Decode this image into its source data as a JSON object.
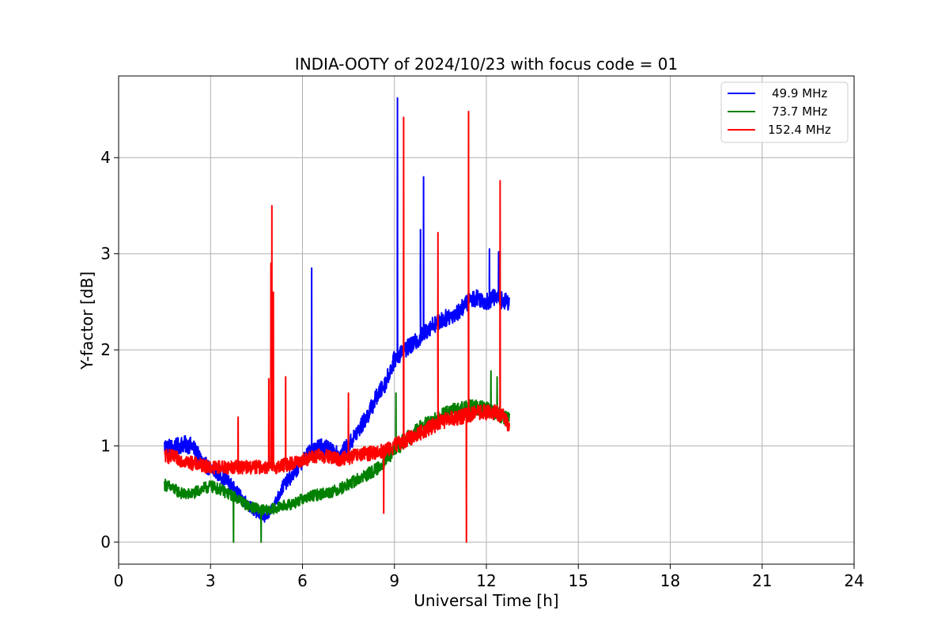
{
  "chart_data": {
    "type": "line",
    "title": "INDIA-OOTY of 2024/10/23 with focus code = 01",
    "xlabel": "Universal Time [h]",
    "ylabel": "Y-factor [dB]",
    "xlim": [
      0,
      24
    ],
    "ylim": [
      -0.23,
      4.85
    ],
    "xticks": [
      0,
      3,
      6,
      9,
      12,
      15,
      18,
      21,
      24
    ],
    "yticks": [
      0,
      1,
      2,
      3,
      4
    ],
    "grid": true,
    "legend_position": "top-right",
    "series": [
      {
        "name": "49.9 MHz",
        "color": "#0000ff",
        "x": [
          1.5,
          1.8,
          2.1,
          2.4,
          2.7,
          3.0,
          3.3,
          3.6,
          3.9,
          4.2,
          4.5,
          4.8,
          5.1,
          5.4,
          5.7,
          6.0,
          6.3,
          6.6,
          6.9,
          7.2,
          7.5,
          7.8,
          8.1,
          8.4,
          8.7,
          9.0,
          9.3,
          9.6,
          9.9,
          10.2,
          10.5,
          10.8,
          11.1,
          11.4,
          11.7,
          12.0,
          12.3,
          12.6,
          12.75
        ],
        "y": [
          1.0,
          0.98,
          1.02,
          1.0,
          0.85,
          0.75,
          0.7,
          0.62,
          0.5,
          0.4,
          0.3,
          0.25,
          0.4,
          0.6,
          0.7,
          0.85,
          0.95,
          1.0,
          0.95,
          0.9,
          1.0,
          1.15,
          1.3,
          1.5,
          1.65,
          1.9,
          2.0,
          2.05,
          2.15,
          2.25,
          2.3,
          2.35,
          2.4,
          2.5,
          2.55,
          2.5,
          2.55,
          2.5,
          2.5
        ],
        "spikes": [
          [
            6.3,
            2.85
          ],
          [
            9.1,
            4.62
          ],
          [
            9.85,
            3.25
          ],
          [
            9.95,
            3.8
          ],
          [
            12.1,
            3.05
          ],
          [
            12.4,
            3.02
          ]
        ]
      },
      {
        "name": "73.7 MHz",
        "color": "#008000",
        "x": [
          1.5,
          1.8,
          2.1,
          2.4,
          2.7,
          3.0,
          3.3,
          3.6,
          3.9,
          4.2,
          4.5,
          4.8,
          5.1,
          5.4,
          5.7,
          6.0,
          6.3,
          6.6,
          6.9,
          7.2,
          7.5,
          7.8,
          8.1,
          8.4,
          8.7,
          9.0,
          9.3,
          9.6,
          9.9,
          10.2,
          10.5,
          10.8,
          11.1,
          11.4,
          11.7,
          12.0,
          12.3,
          12.6,
          12.75
        ],
        "y": [
          0.6,
          0.55,
          0.5,
          0.5,
          0.55,
          0.58,
          0.55,
          0.5,
          0.45,
          0.38,
          0.35,
          0.33,
          0.35,
          0.38,
          0.4,
          0.45,
          0.48,
          0.5,
          0.52,
          0.55,
          0.6,
          0.65,
          0.7,
          0.75,
          0.85,
          0.95,
          1.05,
          1.12,
          1.2,
          1.25,
          1.3,
          1.35,
          1.38,
          1.4,
          1.4,
          1.38,
          1.35,
          1.3,
          1.3
        ],
        "spikes": [
          [
            3.75,
            0.0
          ],
          [
            4.65,
            0.0
          ],
          [
            9.05,
            1.55
          ],
          [
            12.15,
            1.78
          ],
          [
            12.35,
            1.72
          ]
        ]
      },
      {
        "name": "152.4 MHz",
        "color": "#ff0000",
        "x": [
          1.5,
          1.8,
          2.1,
          2.4,
          2.7,
          3.0,
          3.3,
          3.6,
          3.9,
          4.2,
          4.5,
          4.8,
          5.1,
          5.4,
          5.7,
          6.0,
          6.3,
          6.6,
          6.9,
          7.2,
          7.5,
          7.8,
          8.1,
          8.4,
          8.7,
          9.0,
          9.3,
          9.6,
          9.9,
          10.2,
          10.5,
          10.8,
          11.1,
          11.4,
          11.7,
          12.0,
          12.3,
          12.6,
          12.75
        ],
        "y": [
          0.9,
          0.88,
          0.85,
          0.82,
          0.8,
          0.78,
          0.78,
          0.78,
          0.78,
          0.78,
          0.78,
          0.78,
          0.78,
          0.8,
          0.82,
          0.85,
          0.88,
          0.9,
          0.88,
          0.86,
          0.88,
          0.9,
          0.92,
          0.93,
          0.95,
          1.0,
          1.05,
          1.1,
          1.15,
          1.2,
          1.25,
          1.28,
          1.3,
          1.32,
          1.35,
          1.35,
          1.35,
          1.3,
          1.2
        ],
        "spikes": [
          [
            3.9,
            1.3
          ],
          [
            4.9,
            1.7
          ],
          [
            4.97,
            2.9
          ],
          [
            5.0,
            3.5
          ],
          [
            5.05,
            2.6
          ],
          [
            5.45,
            1.72
          ],
          [
            7.5,
            1.55
          ],
          [
            8.65,
            0.3
          ],
          [
            9.3,
            4.42
          ],
          [
            10.42,
            3.22
          ],
          [
            11.35,
            0.0
          ],
          [
            11.42,
            4.48
          ],
          [
            12.45,
            3.76
          ]
        ]
      }
    ]
  }
}
